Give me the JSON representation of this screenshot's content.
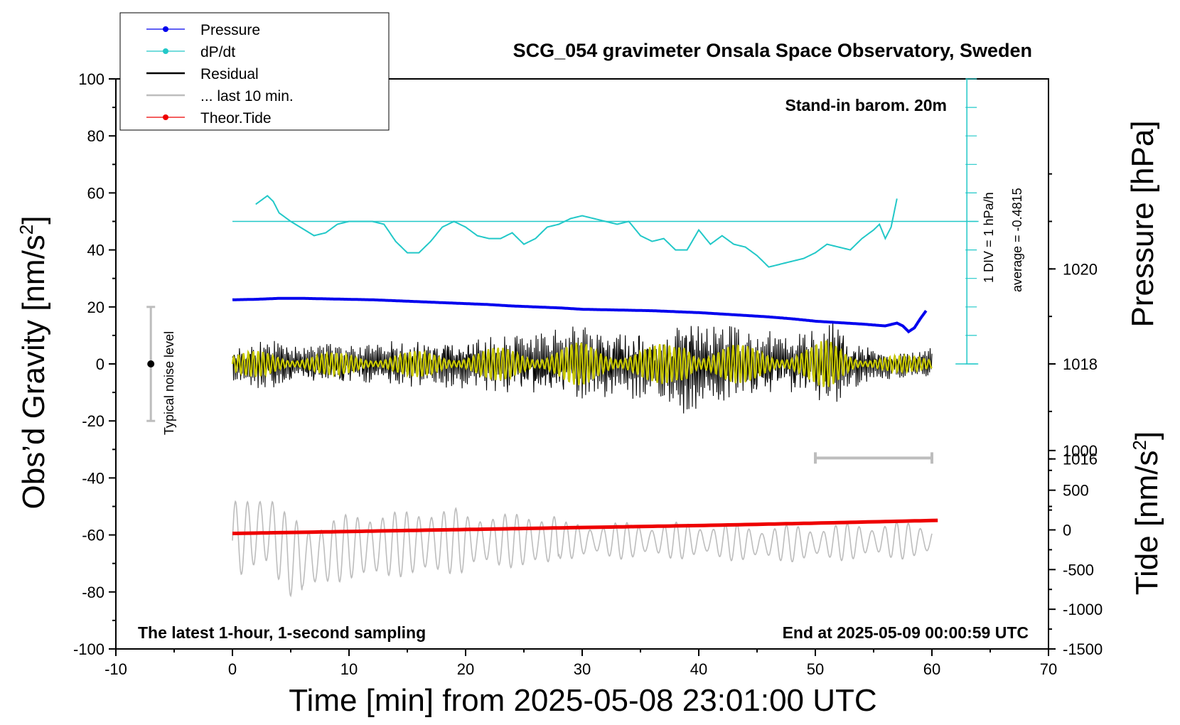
{
  "chart_data": {
    "type": "line",
    "title": "SCG_054 gravimeter Onsala Space Observatory, Sweden",
    "xlabel": "Time [min] from 2025-05-08 23:01:00 UTC",
    "ylabel_left": "Obs’d Gravity [nm/s",
    "ylabel_left_sup": "2",
    "ylabel_left_close": "]",
    "ylabel_pressure": "Pressure [hPa]",
    "ylabel_tide": "Tide [nm/s",
    "ylabel_tide_sup": "2",
    "ylabel_tide_close": "]",
    "xlim": [
      -10,
      70
    ],
    "ylim_gravity": [
      -100,
      100
    ],
    "x_ticks": [
      "-10",
      "0",
      "10",
      "20",
      "30",
      "40",
      "50",
      "60",
      "70"
    ],
    "y_ticks_gravity": [
      "100",
      "80",
      "60",
      "40",
      "20",
      "0",
      "-20",
      "-40",
      "-60",
      "-80",
      "-100"
    ],
    "pressure_axis": {
      "range": [
        1012,
        1024
      ],
      "ticks": [
        "1020",
        "1018",
        "1016"
      ]
    },
    "tide_axis": {
      "range": [
        -1500,
        1500
      ],
      "ticks": [
        "1000",
        "500",
        "0",
        "-500",
        "-1000",
        "-1500"
      ]
    },
    "annotations": {
      "stand_in": "Stand-in barom. 20m",
      "latest": "The latest 1-hour, 1-second sampling",
      "end_at": "End at 2025-05-09 00:00:59 UTC",
      "div": "1 DIV = 1 hPa/h",
      "average": "average = -0.4815",
      "noise": "Typical noise level"
    },
    "legend": [
      {
        "label": "Pressure",
        "color": "#0000ee",
        "marker": true
      },
      {
        "label": "dP/dt",
        "color": "#22c8c8",
        "marker": true
      },
      {
        "label": "Residual",
        "color": "#000000",
        "marker": false
      },
      {
        "label": "... last 10 min.",
        "color": "#bdbdbd",
        "marker": false
      },
      {
        "label": "Theor.Tide",
        "color": "#ee0000",
        "marker": true
      }
    ],
    "colors": {
      "pressure": "#0000ee",
      "dpdt": "#22c8c8",
      "residual": "#000000",
      "filtered": "#c8c800",
      "last10": "#bdbdbd",
      "tide": "#ee0000"
    },
    "noise_level": {
      "x": -7,
      "center": 0,
      "half_range": 20
    },
    "last10_bracket": {
      "x_start": 50,
      "x_end": 60,
      "gravity": -33
    },
    "dpdt_axis": {
      "x": 63,
      "y_min": 0,
      "y_max": 100,
      "zero_line_gravity": 50
    },
    "series": [
      {
        "name": "Pressure",
        "unit": "hPa",
        "x": [
          0,
          2,
          4,
          6,
          8,
          10,
          12,
          14,
          16,
          18,
          20,
          22,
          24,
          26,
          28,
          30,
          32,
          34,
          36,
          38,
          40,
          42,
          44,
          46,
          48,
          50,
          52,
          54,
          55,
          56,
          57,
          57.5,
          58,
          58.5,
          59,
          59.5
        ],
        "values": [
          1019.35,
          1019.36,
          1019.38,
          1019.38,
          1019.37,
          1019.36,
          1019.35,
          1019.33,
          1019.31,
          1019.29,
          1019.27,
          1019.25,
          1019.22,
          1019.2,
          1019.18,
          1019.15,
          1019.14,
          1019.13,
          1019.12,
          1019.1,
          1019.08,
          1019.05,
          1019.02,
          1018.99,
          1018.95,
          1018.9,
          1018.87,
          1018.84,
          1018.82,
          1018.8,
          1018.86,
          1018.8,
          1018.68,
          1018.76,
          1018.95,
          1019.12
        ]
      },
      {
        "name": "dP/dt (plotted on gravity scale)",
        "x": [
          2,
          3,
          3.5,
          4,
          5,
          7,
          8,
          9,
          10,
          12,
          13,
          14,
          15,
          16,
          17,
          18,
          19,
          20,
          21,
          22,
          23,
          24,
          25,
          26,
          27,
          28,
          29,
          30,
          31,
          32,
          33,
          34,
          35,
          36,
          37,
          38,
          39,
          40,
          41,
          42,
          43,
          44,
          45,
          46,
          47,
          48,
          49,
          50,
          51,
          52,
          53,
          54,
          55,
          55.5,
          56,
          56.5,
          57
        ],
        "values": [
          56,
          59,
          57,
          53,
          50,
          45,
          46,
          49,
          50,
          50,
          49,
          43,
          39,
          39,
          43,
          48,
          50,
          48,
          45,
          44,
          44,
          46,
          42,
          44,
          48,
          49,
          51,
          52,
          51,
          50,
          49,
          50,
          45,
          43,
          44,
          40,
          40,
          47,
          42,
          45,
          42,
          41,
          38,
          34,
          35,
          36,
          37,
          39,
          42,
          41,
          40,
          44,
          47,
          49,
          44,
          48,
          58
        ]
      },
      {
        "name": "Residual",
        "x": [
          0,
          3,
          6,
          9,
          12,
          15,
          18,
          21,
          24,
          27,
          30,
          32,
          34,
          36,
          38,
          39,
          40,
          42,
          44,
          46,
          48,
          50,
          51,
          52,
          54,
          56,
          58,
          60
        ],
        "values": [
          7,
          9,
          8,
          7,
          8,
          8,
          9,
          10,
          11,
          12,
          14,
          12,
          13,
          12,
          14,
          24,
          16,
          14,
          12,
          12,
          11,
          13,
          16,
          14,
          8,
          6,
          5,
          6
        ]
      },
      {
        "name": "... last 10 min.",
        "x": [
          0,
          3,
          5,
          7,
          10,
          12,
          15,
          20,
          25,
          30,
          35,
          40,
          45,
          50,
          55,
          58,
          60
        ],
        "values": [
          -62,
          -58,
          -68,
          -68,
          -64,
          -64,
          -63,
          -62,
          -62,
          -62,
          -62,
          -62,
          -63,
          -63,
          -62,
          -62,
          -62
        ]
      },
      {
        "name": "Theor.Tide",
        "unit": "nm/s2",
        "x": [
          0,
          10,
          20,
          30,
          40,
          50,
          60.5
        ],
        "values": [
          -45,
          -20,
          5,
          30,
          55,
          85,
          120
        ]
      }
    ]
  }
}
